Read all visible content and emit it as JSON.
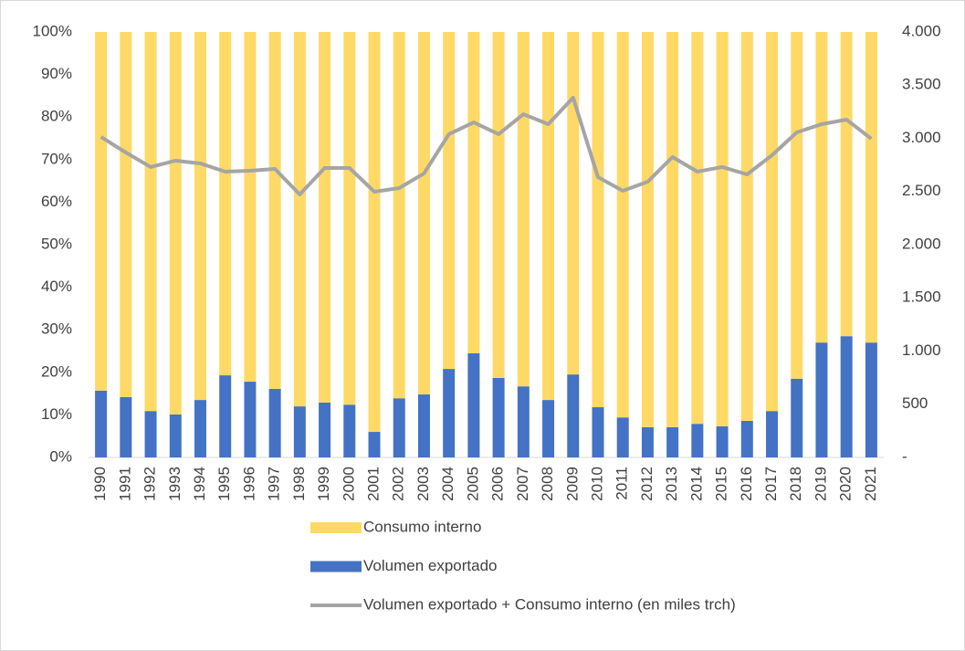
{
  "chart_data": {
    "type": "stacked_bar_line",
    "categories": [
      "1990",
      "1991",
      "1992",
      "1993",
      "1994",
      "1995",
      "1996",
      "1997",
      "1998",
      "1999",
      "2000",
      "2001",
      "2002",
      "2003",
      "2004",
      "2005",
      "2006",
      "2007",
      "2008",
      "2009",
      "2010",
      "2011",
      "2012",
      "2013",
      "2014",
      "2015",
      "2016",
      "2017",
      "2018",
      "2019",
      "2020",
      "2021"
    ],
    "series": [
      {
        "name": "Consumo interno",
        "color": "#ffd966",
        "kind": "bar",
        "values": [
          84.3,
          85.8,
          89.1,
          89.9,
          86.5,
          80.7,
          82.2,
          83.9,
          88,
          87.1,
          87.6,
          94,
          86.1,
          85.2,
          79.2,
          75.5,
          81.3,
          83.3,
          86.5,
          80.5,
          88.2,
          90.6,
          92.9,
          92.9,
          92.1,
          92.7,
          91.4,
          89.1,
          81.5,
          73,
          71.5,
          73
        ]
      },
      {
        "name": "Volumen exportado",
        "color": "#4472c4",
        "kind": "bar",
        "values": [
          15.7,
          14.2,
          10.9,
          10.1,
          13.5,
          19.3,
          17.8,
          16.1,
          12,
          12.9,
          12.4,
          6,
          13.9,
          14.8,
          20.8,
          24.5,
          18.7,
          16.7,
          13.5,
          19.5,
          11.8,
          9.4,
          7.1,
          7.1,
          7.9,
          7.3,
          8.6,
          10.9,
          18.5,
          27,
          28.5,
          27
        ]
      },
      {
        "name": "Volumen exportado + Consumo interno (en miles trch)",
        "color": "#a5a5a5",
        "kind": "line",
        "axis": "y2",
        "values": [
          3013,
          2867,
          2730,
          2790,
          2764,
          2687,
          2695,
          2712,
          2472,
          2721,
          2721,
          2498,
          2532,
          2670,
          3039,
          3150,
          3039,
          3227,
          3133,
          3382,
          2635,
          2506,
          2592,
          2824,
          2687,
          2730,
          2661,
          2841,
          3056,
          3133,
          3176,
          2996
        ]
      }
    ],
    "ylim": [
      0,
      100
    ],
    "yticks": [
      {
        "value": 0,
        "label": "0%"
      },
      {
        "value": 10,
        "label": "10%"
      },
      {
        "value": 20,
        "label": "20%"
      },
      {
        "value": 30,
        "label": "30%"
      },
      {
        "value": 40,
        "label": "40%"
      },
      {
        "value": 50,
        "label": "50%"
      },
      {
        "value": 60,
        "label": "60%"
      },
      {
        "value": 70,
        "label": "70%"
      },
      {
        "value": 80,
        "label": "80%"
      },
      {
        "value": 90,
        "label": "90%"
      },
      {
        "value": 100,
        "label": "100%"
      }
    ],
    "y2lim": [
      0,
      4000
    ],
    "y2ticks": [
      {
        "value": 0,
        "label": "-"
      },
      500,
      {
        "value": 1000,
        "label": "1.000"
      },
      {
        "value": 1500,
        "label": "1.500"
      },
      {
        "value": 2000,
        "label": "2.000"
      },
      {
        "value": 2500,
        "label": "2.500"
      },
      {
        "value": 3000,
        "label": "3.000"
      },
      {
        "value": 3500,
        "label": "3.500"
      },
      {
        "value": 4000,
        "label": "4.000"
      }
    ],
    "grid": false,
    "legend": "bottom"
  }
}
